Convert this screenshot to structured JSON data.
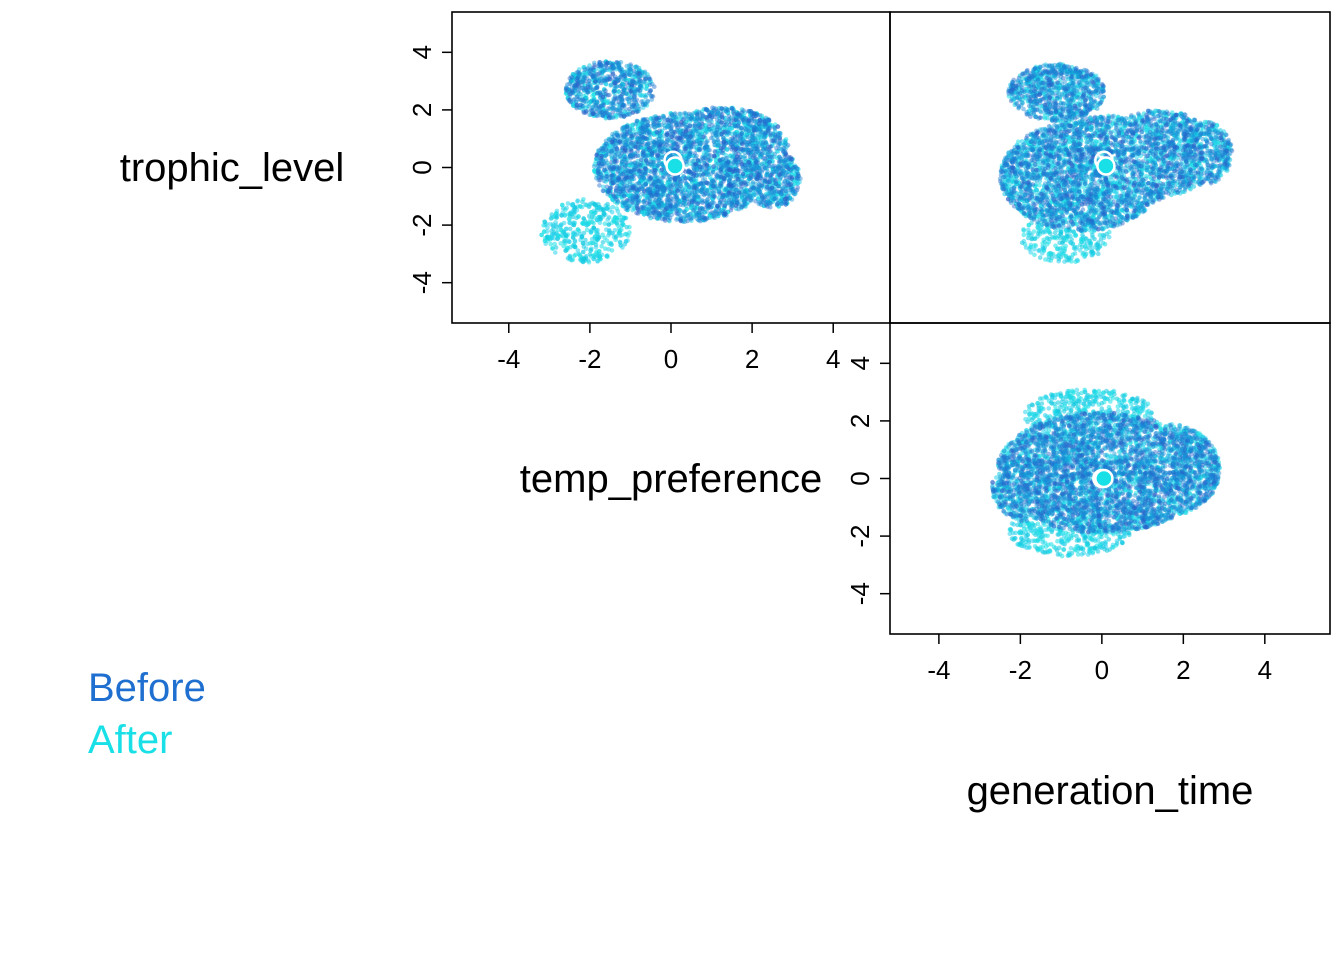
{
  "variables": [
    "trophic_level",
    "temp_preference",
    "generation_time"
  ],
  "legend": {
    "before_label": "Before",
    "after_label": "After",
    "before_color": "#1f6fd0",
    "after_color": "#19e0e6"
  },
  "axis_tick_labels": [
    "-4",
    "-2",
    "0",
    "2",
    "4"
  ],
  "chart_data": {
    "type": "scatter",
    "layout": "pairs-plot (upper triangle)",
    "series_labels": [
      "Before",
      "After"
    ],
    "grid": false,
    "panels": [
      {
        "x_variable": "generation_time",
        "y_variable": "trophic_level",
        "row": 1,
        "col": 2,
        "xlim": [
          -5.2,
          5.6
        ],
        "ylim": [
          -5.4,
          5.4
        ],
        "xticks": [
          -4,
          -2,
          0,
          2,
          4
        ],
        "yticks": [
          -4,
          -2,
          0,
          2,
          4
        ],
        "before_mean": [
          0.05,
          0.25
        ],
        "after_mean": [
          0.1,
          0.05
        ],
        "before_cloud": [
          [
            0.2,
            0.1,
            1.8,
            1.7,
            0
          ],
          [
            -0.5,
            -0.3,
            2.0,
            1.9,
            0
          ],
          [
            1.4,
            0.5,
            1.5,
            1.5,
            0
          ],
          [
            -1.1,
            2.6,
            1.2,
            1.0,
            0
          ],
          [
            2.5,
            0.5,
            0.7,
            1.1,
            0
          ]
        ],
        "after_cloud": [
          [
            0.2,
            0.1,
            1.8,
            1.7,
            0
          ],
          [
            -0.5,
            -0.3,
            2.0,
            1.9,
            0
          ],
          [
            1.4,
            0.5,
            1.5,
            1.5,
            0
          ],
          [
            -1.1,
            2.6,
            1.2,
            1.0,
            0
          ],
          [
            2.5,
            0.5,
            0.7,
            1.1,
            0
          ],
          [
            -0.9,
            -2.4,
            1.1,
            0.9,
            0
          ]
        ]
      },
      {
        "x_variable": "temp_preference",
        "y_variable": "trophic_level",
        "row": 1,
        "col": 1,
        "xlim": [
          -5.4,
          5.4
        ],
        "ylim": [
          -5.4,
          5.4
        ],
        "xticks": [
          -4,
          -2,
          0,
          2,
          4
        ],
        "yticks": [
          -4,
          -2,
          0,
          2,
          4
        ],
        "before_mean": [
          0.05,
          0.25
        ],
        "after_mean": [
          0.1,
          0.05
        ],
        "before_cloud": [
          [
            0.3,
            0.0,
            2.2,
            1.9,
            0
          ],
          [
            1.3,
            0.6,
            1.6,
            1.5,
            0
          ],
          [
            -1.5,
            2.7,
            1.1,
            1.0,
            0
          ],
          [
            2.5,
            -0.4,
            0.7,
            1.0,
            0
          ]
        ],
        "after_cloud": [
          [
            0.3,
            0.0,
            2.2,
            1.9,
            0
          ],
          [
            1.3,
            0.6,
            1.6,
            1.5,
            0
          ],
          [
            -1.5,
            2.7,
            1.1,
            1.0,
            0
          ],
          [
            2.5,
            -0.4,
            0.7,
            1.0,
            0
          ],
          [
            -2.1,
            -2.2,
            1.1,
            1.1,
            0
          ]
        ]
      },
      {
        "x_variable": "generation_time",
        "y_variable": "temp_preference",
        "row": 2,
        "col": 2,
        "xlim": [
          -5.2,
          5.6
        ],
        "ylim": [
          -5.4,
          5.4
        ],
        "xticks": [
          -4,
          -2,
          0,
          2,
          4
        ],
        "yticks": [
          -4,
          -2,
          0,
          2,
          4
        ],
        "before_mean": [
          0.0,
          0.0
        ],
        "after_mean": [
          0.05,
          0.0
        ],
        "before_cloud": [
          [
            0.0,
            0.2,
            2.6,
            2.1,
            0
          ],
          [
            1.6,
            0.3,
            1.3,
            1.6,
            0
          ],
          [
            -1.8,
            -0.3,
            0.9,
            1.2,
            0
          ]
        ],
        "after_cloud": [
          [
            0.0,
            0.2,
            2.6,
            2.1,
            0
          ],
          [
            1.6,
            0.3,
            1.3,
            1.6,
            0
          ],
          [
            -1.8,
            -0.3,
            0.9,
            1.2,
            0
          ],
          [
            -0.8,
            -1.8,
            1.5,
            0.9,
            0
          ],
          [
            -0.3,
            2.2,
            1.6,
            0.9,
            0
          ]
        ]
      }
    ]
  }
}
